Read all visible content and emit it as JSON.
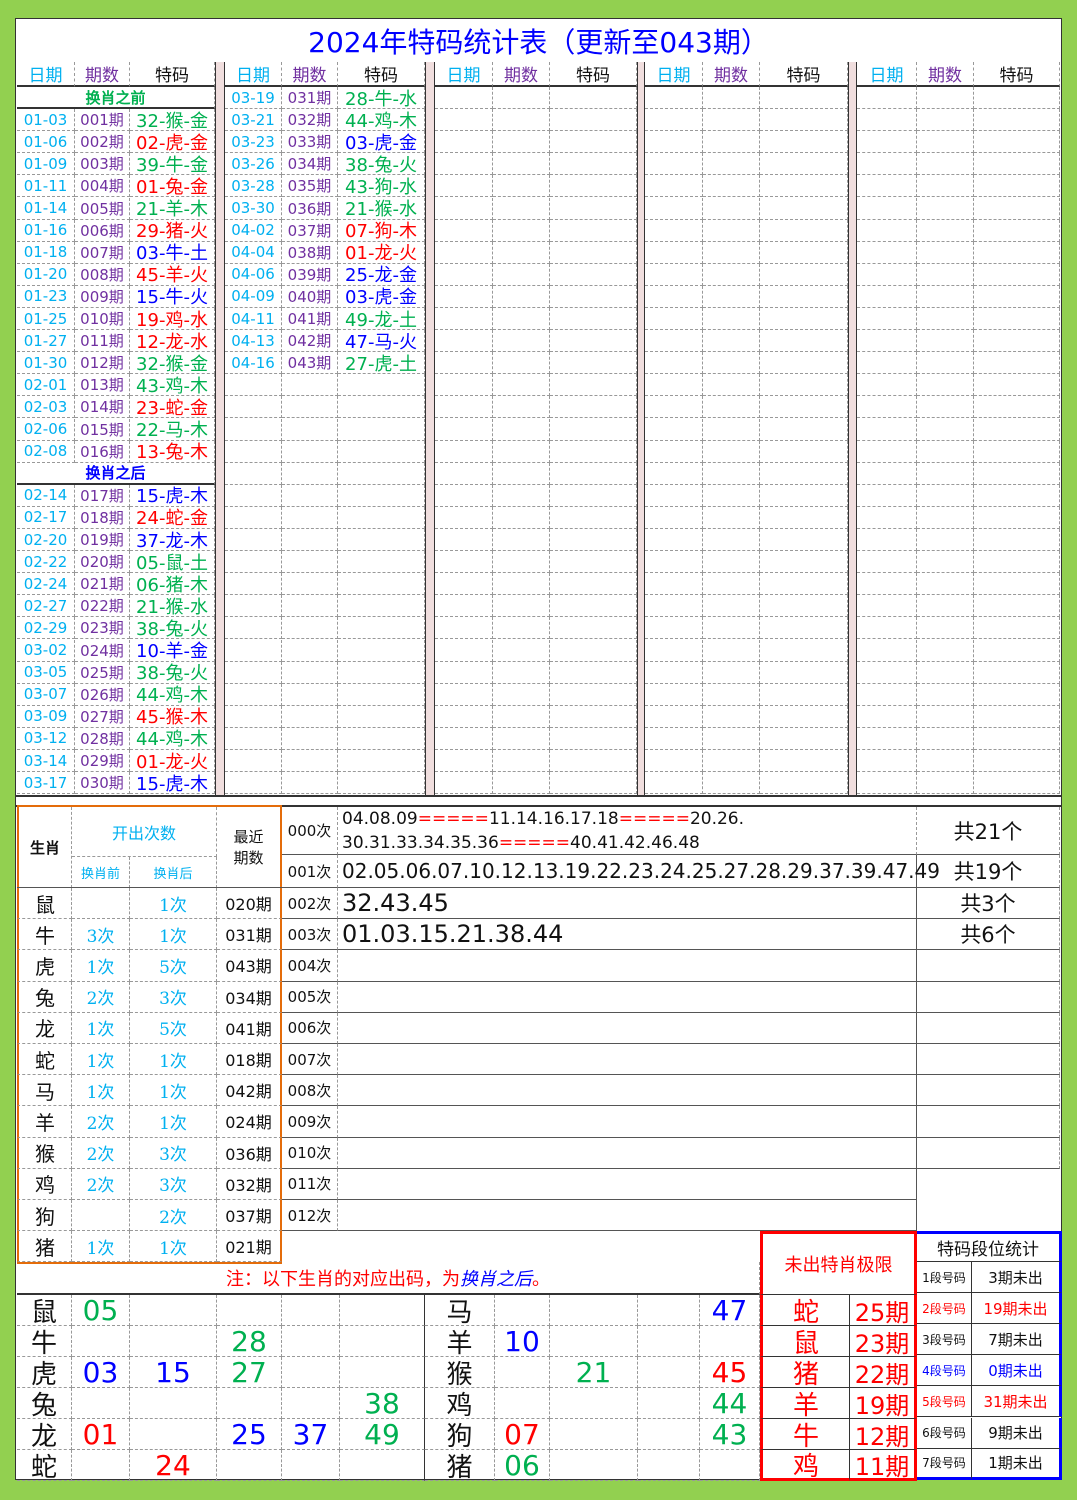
{
  "title": "2024年特码统计表（更新至043期）",
  "headers": {
    "date": "日期",
    "period": "期数",
    "code": "特码"
  },
  "section_before": "换肖之前",
  "section_after": "换肖之后",
  "colors": {
    "r": "#ff0000",
    "g": "#00b050",
    "b": "#0000ff"
  },
  "records_col1": [
    [
      "01-03",
      "001期",
      "32-猴-金",
      "g"
    ],
    [
      "01-06",
      "002期",
      "02-虎-金",
      "r"
    ],
    [
      "01-09",
      "003期",
      "39-牛-金",
      "g"
    ],
    [
      "01-11",
      "004期",
      "01-兔-金",
      "r"
    ],
    [
      "01-14",
      "005期",
      "21-羊-木",
      "g"
    ],
    [
      "01-16",
      "006期",
      "29-猪-火",
      "r"
    ],
    [
      "01-18",
      "007期",
      "03-牛-土",
      "b"
    ],
    [
      "01-20",
      "008期",
      "45-羊-火",
      "r"
    ],
    [
      "01-23",
      "009期",
      "15-牛-火",
      "b"
    ],
    [
      "01-25",
      "010期",
      "19-鸡-水",
      "r"
    ],
    [
      "01-27",
      "011期",
      "12-龙-水",
      "r"
    ],
    [
      "01-30",
      "012期",
      "32-猴-金",
      "g"
    ],
    [
      "02-01",
      "013期",
      "43-鸡-木",
      "g"
    ],
    [
      "02-03",
      "014期",
      "23-蛇-金",
      "r"
    ],
    [
      "02-06",
      "015期",
      "22-马-木",
      "g"
    ],
    [
      "02-08",
      "016期",
      "13-兔-木",
      "r"
    ]
  ],
  "records_col1_after": [
    [
      "02-14",
      "017期",
      "15-虎-木",
      "b"
    ],
    [
      "02-17",
      "018期",
      "24-蛇-金",
      "r"
    ],
    [
      "02-20",
      "019期",
      "37-龙-木",
      "b"
    ],
    [
      "02-22",
      "020期",
      "05-鼠-土",
      "g"
    ],
    [
      "02-24",
      "021期",
      "06-猪-木",
      "g"
    ],
    [
      "02-27",
      "022期",
      "21-猴-水",
      "g"
    ],
    [
      "02-29",
      "023期",
      "38-兔-火",
      "g"
    ],
    [
      "03-02",
      "024期",
      "10-羊-金",
      "b"
    ],
    [
      "03-05",
      "025期",
      "38-兔-火",
      "g"
    ],
    [
      "03-07",
      "026期",
      "44-鸡-木",
      "g"
    ],
    [
      "03-09",
      "027期",
      "45-猴-木",
      "r"
    ],
    [
      "03-12",
      "028期",
      "44-鸡-木",
      "g"
    ],
    [
      "03-14",
      "029期",
      "01-龙-火",
      "r"
    ],
    [
      "03-17",
      "030期",
      "15-虎-木",
      "b"
    ]
  ],
  "records_col2": [
    [
      "03-19",
      "031期",
      "28-牛-水",
      "g"
    ],
    [
      "03-21",
      "032期",
      "44-鸡-木",
      "g"
    ],
    [
      "03-23",
      "033期",
      "03-虎-金",
      "b"
    ],
    [
      "03-26",
      "034期",
      "38-兔-火",
      "g"
    ],
    [
      "03-28",
      "035期",
      "43-狗-水",
      "g"
    ],
    [
      "03-30",
      "036期",
      "21-猴-水",
      "g"
    ],
    [
      "04-02",
      "037期",
      "07-狗-木",
      "r"
    ],
    [
      "04-04",
      "038期",
      "01-龙-火",
      "r"
    ],
    [
      "04-06",
      "039期",
      "25-龙-金",
      "b"
    ],
    [
      "04-09",
      "040期",
      "03-虎-金",
      "b"
    ],
    [
      "04-11",
      "041期",
      "49-龙-土",
      "g"
    ],
    [
      "04-13",
      "042期",
      "47-马-火",
      "b"
    ],
    [
      "04-16",
      "043期",
      "27-虎-土",
      "g"
    ]
  ],
  "zodiac_table": {
    "h_zodiac": "生肖",
    "h_count": "开出次数",
    "h_before": "换肖前",
    "h_after": "换肖后",
    "h_recent": "最近期数",
    "rows": [
      [
        "鼠",
        "",
        "1次",
        "020期"
      ],
      [
        "牛",
        "3次",
        "1次",
        "031期"
      ],
      [
        "虎",
        "1次",
        "5次",
        "043期"
      ],
      [
        "兔",
        "2次",
        "3次",
        "034期"
      ],
      [
        "龙",
        "1次",
        "5次",
        "041期"
      ],
      [
        "蛇",
        "1次",
        "1次",
        "018期"
      ],
      [
        "马",
        "1次",
        "1次",
        "042期"
      ],
      [
        "羊",
        "2次",
        "1次",
        "024期"
      ],
      [
        "猴",
        "2次",
        "3次",
        "036期"
      ],
      [
        "鸡",
        "2次",
        "3次",
        "032期"
      ],
      [
        "狗",
        "",
        "2次",
        "037期"
      ],
      [
        "猪",
        "1次",
        "1次",
        "021期"
      ]
    ]
  },
  "times_table": [
    {
      "label": "000次",
      "line1": [
        "04.08.09",
        "=====",
        "11.14.16.17.18",
        "=====",
        "20.26."
      ],
      "line2": [
        "30.31.33.34.35.36",
        "=====",
        "40.41.42.46.48"
      ],
      "total": "共21个"
    },
    {
      "label": "001次",
      "numbers": "02.05.06.07.10.12.13.19.22.23.24.25.27.28.29.37.39.47.49",
      "total": "共19个"
    },
    {
      "label": "002次",
      "numbers": "32.43.45",
      "total": "共3个"
    },
    {
      "label": "003次",
      "numbers": "01.03.15.21.38.44",
      "total": "共6个"
    },
    {
      "label": "004次",
      "numbers": "",
      "total": ""
    },
    {
      "label": "005次",
      "numbers": "",
      "total": ""
    },
    {
      "label": "006次",
      "numbers": "",
      "total": ""
    },
    {
      "label": "007次",
      "numbers": "",
      "total": ""
    },
    {
      "label": "008次",
      "numbers": "",
      "total": ""
    },
    {
      "label": "009次",
      "numbers": "",
      "total": ""
    },
    {
      "label": "010次",
      "numbers": "",
      "total": ""
    },
    {
      "label": "011次",
      "numbers": "",
      "total": ""
    },
    {
      "label": "012次",
      "numbers": "",
      "total": ""
    }
  ],
  "note": {
    "prefix": "注：以下生肖的对应出码，为",
    "emphasis": "换肖之后",
    "suffix": "。"
  },
  "mapping_left": [
    [
      "鼠",
      [
        [
          "05",
          "g"
        ],
        null,
        null,
        null,
        null
      ]
    ],
    [
      "牛",
      [
        null,
        null,
        [
          "28",
          "g"
        ],
        null,
        null
      ]
    ],
    [
      "虎",
      [
        [
          "03",
          "b"
        ],
        [
          "15",
          "b"
        ],
        [
          "27",
          "g"
        ],
        null,
        null
      ]
    ],
    [
      "兔",
      [
        null,
        null,
        null,
        null,
        [
          "38",
          "g"
        ]
      ]
    ],
    [
      "龙",
      [
        [
          "01",
          "r"
        ],
        null,
        [
          "25",
          "b"
        ],
        [
          "37",
          "b"
        ],
        [
          "49",
          "g"
        ]
      ]
    ],
    [
      "蛇",
      [
        null,
        [
          "24",
          "r"
        ],
        null,
        null,
        null
      ]
    ]
  ],
  "mapping_right": [
    [
      "马",
      [
        null,
        null,
        null,
        [
          "47",
          "b"
        ]
      ]
    ],
    [
      "羊",
      [
        [
          "10",
          "b"
        ],
        null,
        null,
        null
      ]
    ],
    [
      "猴",
      [
        null,
        [
          "21",
          "g"
        ],
        null,
        [
          "45",
          "r"
        ]
      ]
    ],
    [
      "鸡",
      [
        null,
        null,
        null,
        [
          "44",
          "g"
        ]
      ]
    ],
    [
      "狗",
      [
        [
          "07",
          "r"
        ],
        null,
        null,
        [
          "43",
          "g"
        ]
      ]
    ],
    [
      "猪",
      [
        [
          "06",
          "g"
        ],
        null,
        null,
        null
      ]
    ]
  ],
  "limit": {
    "title": "未出特肖极限",
    "rows": [
      [
        "蛇",
        "25期"
      ],
      [
        "鼠",
        "23期"
      ],
      [
        "猪",
        "22期"
      ],
      [
        "羊",
        "19期"
      ],
      [
        "牛",
        "12期"
      ],
      [
        "鸡",
        "11期"
      ]
    ]
  },
  "segments": {
    "title": "特码段位统计",
    "rows": [
      [
        "1段号码",
        "3期未出",
        "k"
      ],
      [
        "2段号码",
        "19期未出",
        "r"
      ],
      [
        "3段号码",
        "7期未出",
        "k"
      ],
      [
        "4段号码",
        "0期未出",
        "b"
      ],
      [
        "5段号码",
        "31期未出",
        "r"
      ],
      [
        "6段号码",
        "9期未出",
        "k"
      ],
      [
        "7段号码",
        "1期未出",
        "k"
      ]
    ]
  }
}
